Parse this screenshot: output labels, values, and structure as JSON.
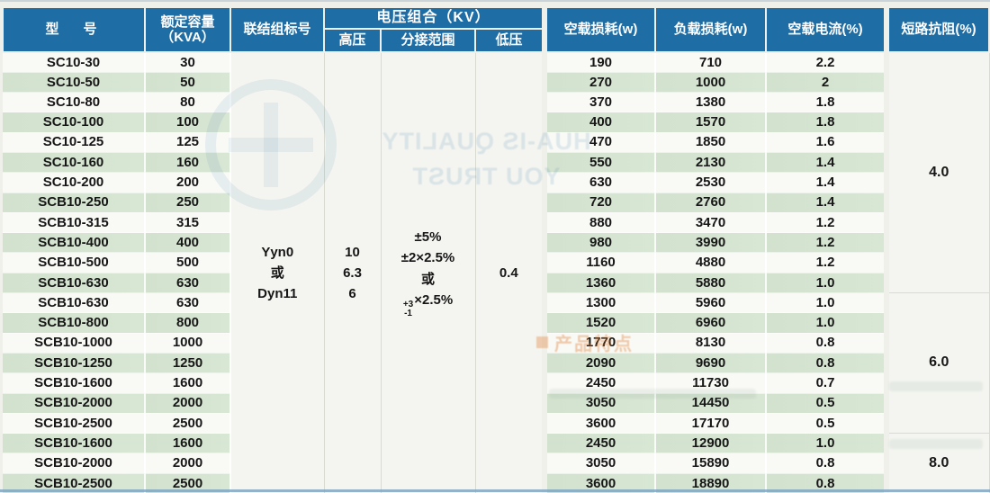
{
  "theme": {
    "header_blue": "#1e6da4",
    "stripe_green": "#d8e6d4",
    "stripe_white": "#f9faf6",
    "merged_bg": "#f4f5f0",
    "page_bg": "#eef0e9",
    "text_dark": "#161616",
    "border_light": "#d9dbd1",
    "bottom_line_blue": "#7aa3c2"
  },
  "header": {
    "model": "型　号",
    "capacity_line1": "额定容量",
    "capacity_line2": "（KVA）",
    "connection": "联结组标号",
    "voltage_group": "电压组合（KV）",
    "hv": "高压",
    "tap_range": "分接范围",
    "lv": "低压",
    "no_load_loss": "空载损耗(w)",
    "load_loss": "负载损耗(w)",
    "no_load_current": "空载电流(%)",
    "impedance": "短路抗阻(%)"
  },
  "merged": {
    "connection_lines": [
      "Yyn0",
      "或",
      "Dyn11"
    ],
    "hv_lines": [
      "10",
      "6.3",
      "6"
    ],
    "tap_lines": [
      "±5%",
      "±2×2.5%",
      "或"
    ],
    "tap_stack_top": "+3",
    "tap_stack_bottom": "-1",
    "tap_stack_rest": "×2.5%",
    "lv_value": "0.4"
  },
  "rows": [
    [
      "SC10-30",
      "30",
      "190",
      "710",
      "2.2"
    ],
    [
      "SC10-50",
      "50",
      "270",
      "1000",
      "2"
    ],
    [
      "SC10-80",
      "80",
      "370",
      "1380",
      "1.8"
    ],
    [
      "SC10-100",
      "100",
      "400",
      "1570",
      "1.8"
    ],
    [
      "SC10-125",
      "125",
      "470",
      "1850",
      "1.6"
    ],
    [
      "SC10-160",
      "160",
      "550",
      "2130",
      "1.4"
    ],
    [
      "SC10-200",
      "200",
      "630",
      "2530",
      "1.4"
    ],
    [
      "SCB10-250",
      "250",
      "720",
      "2760",
      "1.4"
    ],
    [
      "SCB10-315",
      "315",
      "880",
      "3470",
      "1.2"
    ],
    [
      "SCB10-400",
      "400",
      "980",
      "3990",
      "1.2"
    ],
    [
      "SCB10-500",
      "500",
      "1160",
      "4880",
      "1.2"
    ],
    [
      "SCB10-630",
      "630",
      "1360",
      "5880",
      "1.0"
    ],
    [
      "SCB10-630",
      "630",
      "1300",
      "5960",
      "1.0"
    ],
    [
      "SCB10-800",
      "800",
      "1520",
      "6960",
      "1.0"
    ],
    [
      "SCB10-1000",
      "1000",
      "1770",
      "8130",
      "0.8"
    ],
    [
      "SCB10-1250",
      "1250",
      "2090",
      "9690",
      "0.8"
    ],
    [
      "SCB10-1600",
      "1600",
      "2450",
      "11730",
      "0.7"
    ],
    [
      "SCB10-2000",
      "2000",
      "3050",
      "14450",
      "0.5"
    ],
    [
      "SCB10-2500",
      "2500",
      "3600",
      "17170",
      "0.5"
    ],
    [
      "SCB10-1600",
      "1600",
      "2450",
      "12900",
      "1.0"
    ],
    [
      "SCB10-2000",
      "2000",
      "3050",
      "15890",
      "0.8"
    ],
    [
      "SCB10-2500",
      "2500",
      "3600",
      "18890",
      "0.8"
    ]
  ],
  "impedance_groups": [
    {
      "value": "4.0",
      "span": 12
    },
    {
      "value": "6.0",
      "span": 7
    },
    {
      "value": "8.0",
      "span": 3
    }
  ],
  "watermarks": {
    "brand_line1": "HUA-IS QUALITY",
    "brand_line2": "YOU TRUST",
    "features_label": "产品特点"
  }
}
